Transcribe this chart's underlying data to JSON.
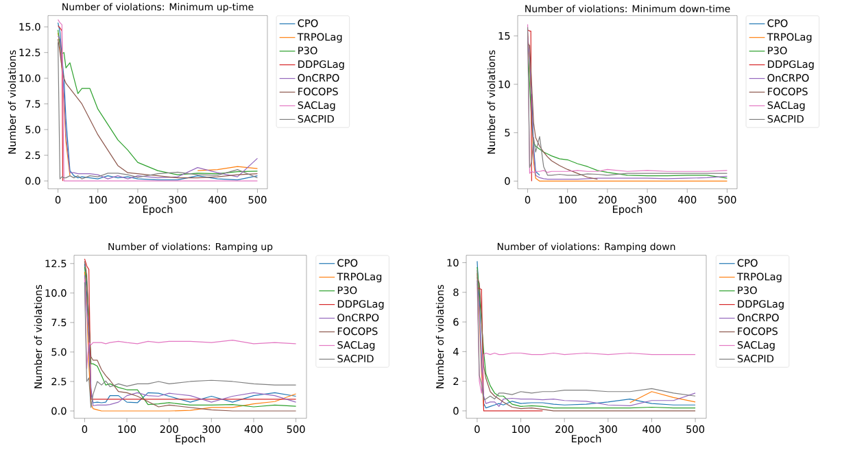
{
  "chart_data": [
    {
      "type": "line",
      "title": "Number of violations: Minimum up-time",
      "xlabel": "Epoch",
      "ylabel": "Number of violations",
      "legend": "right",
      "x": [
        0,
        5,
        10,
        15,
        20,
        30,
        40,
        50,
        60,
        80,
        100,
        125,
        150,
        175,
        200,
        250,
        300,
        350,
        400,
        450,
        500
      ],
      "xlim": [
        -25,
        525
      ],
      "ylim": [
        -0.77,
        16.1
      ],
      "xticks": [
        0,
        100,
        200,
        300,
        400,
        500
      ],
      "yticks": [
        {
          "value": 0,
          "label": "0.0"
        },
        {
          "value": 2.5,
          "label": "2.5"
        },
        {
          "value": 5,
          "label": "5.0"
        },
        {
          "value": 7.5,
          "label": "7.5"
        },
        {
          "value": 10,
          "label": "10.0"
        },
        {
          "value": 12.5,
          "label": "12.5"
        },
        {
          "value": 15,
          "label": "15.0"
        }
      ],
      "series": [
        {
          "name": "CPO",
          "color": "#1f77b4",
          "values": [
            15.4,
            14.5,
            12,
            10,
            6,
            1.0,
            0.5,
            0.3,
            0.4,
            0.3,
            0.2,
            0.5,
            0.3,
            0.4,
            0.2,
            0.1,
            0.1,
            0.5,
            0.2,
            0.1,
            0.5
          ]
        },
        {
          "name": "TRPOLag",
          "color": "#ff7f0e",
          "values": [
            14.4,
            13.3,
            10.8,
            7.5,
            3.8,
            0.5,
            null,
            null,
            null,
            null,
            null,
            null,
            null,
            null,
            null,
            null,
            null,
            1.0,
            1.1,
            1.4,
            1.2
          ]
        },
        {
          "name": "P3O",
          "color": "#2ca02c",
          "values": [
            14.7,
            13.2,
            12.4,
            12.5,
            11,
            11.5,
            10,
            8.5,
            9,
            9,
            7,
            5.5,
            4,
            3,
            1.8,
            1.0,
            0.6,
            0.75,
            0.7,
            0.9,
            0.95
          ]
        },
        {
          "name": "DDPGLag",
          "color": "#d62728",
          "x": [
            0,
            5,
            10,
            12
          ],
          "values": [
            15.1,
            14.9,
            14.6,
            0
          ]
        },
        {
          "name": "OnCRPO",
          "color": "#9467bd",
          "values": [
            14.1,
            13.8,
            11.3,
            8.5,
            4.5,
            0.8,
            0.8,
            0.7,
            0.7,
            0.7,
            0.6,
            0.2,
            0.5,
            0.2,
            0.5,
            0.3,
            0.4,
            1.3,
            0.8,
            0.4,
            2.2
          ]
        },
        {
          "name": "FOCOPS",
          "color": "#8c564b",
          "values": [
            13.8,
            12.5,
            11,
            10,
            9.5,
            9,
            8.5,
            8,
            7.5,
            6,
            4.5,
            3,
            1.5,
            0.8,
            0.7,
            0.5,
            0.3,
            0.3,
            0.4,
            0.6,
            0.7
          ]
        },
        {
          "name": "SACLag",
          "color": "#e377c2",
          "values": [
            15.7,
            15.4,
            15.2,
            0,
            0,
            0,
            0,
            0,
            0,
            0,
            0,
            0,
            0,
            0,
            0,
            0,
            0,
            0,
            0,
            0,
            0
          ]
        },
        {
          "name": "SACPID",
          "color": "#7f7f7f",
          "values": [
            13.5,
            0.2,
            0.4,
            0.3,
            0.3,
            0.5,
            0.3,
            0.5,
            0.2,
            0.5,
            0.4,
            0.75,
            0.75,
            0.6,
            0.35,
            0.7,
            0.85,
            0.6,
            0.55,
            1.1,
            0.3
          ]
        }
      ]
    },
    {
      "type": "line",
      "title": "Number of violations: Minimum down-time",
      "xlabel": "Epoch",
      "ylabel": "Number of violations",
      "legend": "right",
      "x": [
        0,
        5,
        10,
        15,
        20,
        30,
        40,
        50,
        60,
        80,
        100,
        125,
        150,
        175,
        200,
        250,
        300,
        350,
        400,
        450,
        500
      ],
      "xlim": [
        -25,
        525
      ],
      "ylim": [
        -0.8,
        17.1
      ],
      "xticks": [
        0,
        100,
        200,
        300,
        400,
        500
      ],
      "yticks": [
        0,
        5,
        10,
        15
      ],
      "series": [
        {
          "name": "CPO",
          "color": "#1f77b4",
          "values": [
            null,
            null,
            9,
            3.5,
            1.0,
            0.6,
            null,
            null,
            null,
            null,
            null,
            null,
            null,
            null,
            null,
            null,
            null,
            null,
            null,
            null,
            null
          ]
        },
        {
          "name": "TRPOLag",
          "color": "#ff7f0e",
          "values": [
            15.3,
            12.5,
            7,
            2,
            0.3,
            0,
            0,
            0,
            0,
            0,
            0,
            0,
            0,
            0,
            0,
            0,
            0,
            0,
            0,
            0,
            0
          ]
        },
        {
          "name": "P3O",
          "color": "#2ca02c",
          "values": [
            14.5,
            10,
            6,
            4,
            3.6,
            3.3,
            3.0,
            2.8,
            2.6,
            2.3,
            2.2,
            1.8,
            1.5,
            1.1,
            0.9,
            0.6,
            0.55,
            0.55,
            0.6,
            0.6,
            0.3
          ]
        },
        {
          "name": "DDPGLag",
          "color": "#d62728",
          "x": [
            0,
            5,
            8,
            10
          ],
          "values": [
            15.6,
            15.5,
            15.5,
            0
          ]
        },
        {
          "name": "OnCRPO",
          "color": "#9467bd",
          "values": [
            15.0,
            12.8,
            8,
            3,
            0.6,
            0.35,
            0.25,
            0.2,
            0.2,
            0.2,
            0.2,
            0.2,
            0.25,
            0.3,
            0.3,
            0.3,
            0.3,
            0.25,
            0.3,
            0.35,
            0.5
          ]
        },
        {
          "name": "FOCOPS",
          "color": "#8c564b",
          "values": [
            14.2,
            14,
            10,
            6,
            4.5,
            3.6,
            3.0,
            2.5,
            2.1,
            1.6,
            1.2,
            0.8,
            0.4,
            0.2,
            null,
            null,
            null,
            null,
            null,
            null,
            null
          ]
        },
        {
          "name": "SACLag",
          "color": "#e377c2",
          "values": [
            16.2,
            0.8,
            1.0,
            0.9,
            1.0,
            1.0,
            1.1,
            0.9,
            1.0,
            1.0,
            1.0,
            1.1,
            1.0,
            1.0,
            1.2,
            1.0,
            1.1,
            1.0,
            1.0,
            1.0,
            1.1
          ]
        },
        {
          "name": "SACPID",
          "color": "#7f7f7f",
          "values": [
            15.9,
            1.4,
            2.0,
            4.5,
            3.0,
            4.6,
            1.5,
            0.6,
            0.6,
            0.7,
            0.6,
            0.6,
            0.75,
            0.7,
            0.6,
            0.8,
            0.8,
            0.8,
            0.8,
            0.8,
            0.8
          ]
        }
      ]
    },
    {
      "type": "line",
      "title": "Number of violations: Ramping up",
      "xlabel": "Epoch",
      "ylabel": "Number of violations",
      "legend": "right",
      "x": [
        0,
        5,
        10,
        15,
        20,
        30,
        40,
        50,
        60,
        80,
        100,
        125,
        150,
        175,
        200,
        250,
        300,
        350,
        400,
        450,
        500
      ],
      "xlim": [
        -25,
        525
      ],
      "ylim": [
        -0.62,
        13.2
      ],
      "xticks": [
        0,
        100,
        200,
        300,
        400,
        500
      ],
      "yticks": [
        {
          "value": 0,
          "label": "0.0"
        },
        {
          "value": 2.5,
          "label": "2.5"
        },
        {
          "value": 5,
          "label": "5.0"
        },
        {
          "value": 7.5,
          "label": "7.5"
        },
        {
          "value": 10,
          "label": "10.0"
        },
        {
          "value": 12.5,
          "label": "12.5"
        }
      ],
      "series": [
        {
          "name": "CPO",
          "color": "#1f77b4",
          "values": [
            12.5,
            10,
            5,
            1.5,
            0.7,
            0.75,
            0.7,
            0.75,
            1.3,
            1.3,
            0.75,
            0.7,
            1.55,
            1.5,
            1.25,
            0.75,
            1.25,
            0.75,
            1.3,
            1.55,
            1.25
          ]
        },
        {
          "name": "TRPOLag",
          "color": "#ff7f0e",
          "values": [
            11.8,
            9,
            4,
            0.6,
            0.2,
            0.1,
            0,
            0,
            0,
            0,
            0,
            0,
            0,
            0,
            0,
            0.05,
            0.3,
            0.3,
            0.6,
            0.8,
            1.45
          ]
        },
        {
          "name": "P3O",
          "color": "#2ca02c",
          "values": [
            12.2,
            11,
            8,
            4,
            4.0,
            3.8,
            3.0,
            2.2,
            2.3,
            2.0,
            1.8,
            1.8,
            0.55,
            0.6,
            0.7,
            0.5,
            0.5,
            0.55,
            0.35,
            0.5,
            0.4
          ]
        },
        {
          "name": "DDPGLag",
          "color": "#d62728",
          "values": [
            12.9,
            12.3,
            12,
            1,
            1,
            1,
            1,
            1,
            1,
            1,
            1,
            1,
            1,
            1,
            1,
            1,
            1,
            1,
            1,
            1,
            1
          ]
        },
        {
          "name": "OnCRPO",
          "color": "#9467bd",
          "values": [
            11.5,
            8.5,
            6.5,
            2.0,
            0.45,
            0.5,
            0.5,
            0.5,
            0.55,
            0.75,
            1.3,
            1.55,
            1.3,
            1.25,
            1.5,
            1.3,
            0.75,
            1.25,
            1.55,
            1.3,
            0.75
          ]
        },
        {
          "name": "FOCOPS",
          "color": "#8c564b",
          "values": [
            12.7,
            11.6,
            7.5,
            4.6,
            4.3,
            4.3,
            3.5,
            3.0,
            2.6,
            1.65,
            1.55,
            1.25,
            0.8,
            0.35,
            0.5,
            0.3,
            0.1,
            0,
            0,
            0,
            0
          ]
        },
        {
          "name": "SACLag",
          "color": "#e377c2",
          "values": [
            11.2,
            3.6,
            5.8,
            5.6,
            5.8,
            5.8,
            5.8,
            5.7,
            5.8,
            5.9,
            5.8,
            5.7,
            5.9,
            5.8,
            5.9,
            5.9,
            5.8,
            6.0,
            5.7,
            5.8,
            5.7
          ]
        },
        {
          "name": "SACPID",
          "color": "#7f7f7f",
          "values": [
            10.9,
            2.5,
            2.8,
            0.3,
            1.4,
            2.5,
            2.2,
            2.55,
            2.05,
            2.3,
            2.1,
            2.3,
            2.3,
            2.5,
            2.3,
            2.5,
            2.6,
            2.5,
            2.3,
            2.2,
            2.2
          ]
        }
      ]
    },
    {
      "type": "line",
      "title": "Number of violations: Ramping down",
      "xlabel": "Epoch",
      "ylabel": "Number of violations",
      "legend": "right",
      "x": [
        0,
        5,
        10,
        15,
        20,
        30,
        40,
        50,
        60,
        80,
        100,
        125,
        150,
        175,
        200,
        250,
        300,
        350,
        400,
        450,
        500
      ],
      "xlim": [
        -25,
        525
      ],
      "ylim": [
        -0.5,
        10.5
      ],
      "xticks": [
        0,
        100,
        200,
        300,
        400,
        500
      ],
      "yticks": [
        0,
        2,
        4,
        6,
        8,
        10
      ],
      "series": [
        {
          "name": "CPO",
          "color": "#1f77b4",
          "values": [
            10.1,
            7.5,
            3.5,
            0.5,
            0.2,
            0.3,
            0.4,
            0.5,
            0.4,
            0.65,
            0.5,
            0.55,
            0.55,
            0.45,
            0.4,
            0.45,
            0.6,
            0.8,
            0.5,
            0.4,
            0.4
          ]
        },
        {
          "name": "TRPOLag",
          "color": "#ff7f0e",
          "values": [
            9.3,
            6.5,
            2.5,
            0.3,
            null,
            null,
            null,
            null,
            null,
            null,
            null,
            null,
            null,
            null,
            null,
            null,
            null,
            0.55,
            1.3,
            0.9,
            0.6
          ]
        },
        {
          "name": "P3O",
          "color": "#2ca02c",
          "values": [
            9.7,
            8,
            6,
            4,
            2.5,
            1.7,
            1.2,
            1.0,
            1.0,
            0.45,
            0.3,
            0.35,
            0.3,
            0.2,
            0.2,
            0.2,
            0.2,
            0.2,
            0.25,
            0.2,
            0.2
          ]
        },
        {
          "name": "DDPGLag",
          "color": "#d62728",
          "values": [
            8.3,
            8.25,
            8.2,
            0,
            0,
            0,
            0,
            0,
            0,
            0,
            0,
            0,
            0,
            null,
            null,
            null,
            null,
            null,
            null,
            null,
            null
          ]
        },
        {
          "name": "OnCRPO",
          "color": "#9467bd",
          "values": [
            8.8,
            7.0,
            3.0,
            1.0,
            0.5,
            0.6,
            0.6,
            0.3,
            0.8,
            0.85,
            0.8,
            0.8,
            0.75,
            0.8,
            0.7,
            0.65,
            0.4,
            0.35,
            0.7,
            0.7,
            1.2
          ]
        },
        {
          "name": "FOCOPS",
          "color": "#8c564b",
          "values": [
            9.0,
            8.6,
            6.5,
            3.0,
            2.2,
            1.3,
            1.0,
            0.8,
            0.6,
            0.25,
            0.15,
            0.2,
            0.1,
            0,
            0,
            0,
            0,
            0,
            0,
            0,
            0
          ]
        },
        {
          "name": "SACLag",
          "color": "#e377c2",
          "values": [
            8.6,
            2,
            1.2,
            3.8,
            3.9,
            3.8,
            3.9,
            3.8,
            3.8,
            3.9,
            3.9,
            3.8,
            3.8,
            3.9,
            3.8,
            3.9,
            3.8,
            3.9,
            3.8,
            3.8,
            3.8
          ]
        },
        {
          "name": "SACPID",
          "color": "#7f7f7f",
          "values": [
            9.5,
            2.4,
            1.8,
            0.75,
            0.8,
            1.0,
            0.8,
            1.2,
            1.2,
            1.1,
            1.3,
            1.2,
            1.3,
            1.3,
            1.4,
            1.4,
            1.3,
            1.3,
            1.5,
            1.2,
            1.0
          ]
        }
      ]
    }
  ]
}
